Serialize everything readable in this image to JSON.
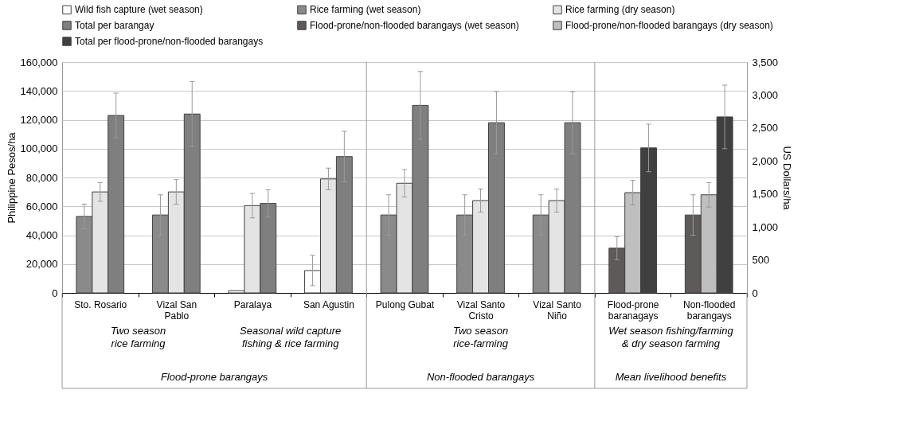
{
  "chart_data": {
    "type": "bar",
    "ylabel": "Philippine Pesos/ha",
    "y2label": "US Dollars/ha",
    "categories": [
      "Sto. Rosario",
      "Vizal San Pablo",
      "Paralaya",
      "San Agustin",
      "Pulong Gubat",
      "Vizal Santo Cristo",
      "Vizal Santo Niño",
      "Flood-prone baranagays",
      "Non-flooded barangays"
    ],
    "series": [
      {
        "name": "Wild fish capture (wet season)",
        "color": "#ffffff",
        "values": [
          null,
          null,
          1500,
          15500,
          null,
          null,
          null,
          null,
          null
        ],
        "errors": [
          null,
          null,
          null,
          10500,
          null,
          null,
          null,
          null,
          null
        ]
      },
      {
        "name": "Rice farming (wet season)",
        "color": "#8a8a8a",
        "values": [
          53000,
          54000,
          null,
          null,
          54000,
          54000,
          54000,
          null,
          null
        ],
        "errors": [
          8500,
          14000,
          null,
          null,
          14000,
          14000,
          14000,
          null,
          null
        ]
      },
      {
        "name": "Rice farming (dry season)",
        "color": "#e4e4e4",
        "values": [
          70000,
          70000,
          60500,
          79000,
          76000,
          64000,
          64000,
          null,
          null
        ],
        "errors": [
          6500,
          8500,
          8500,
          7500,
          9500,
          8000,
          8000,
          null,
          null
        ]
      },
      {
        "name": "Total per barangay",
        "color": "#7f7f7f",
        "values": [
          123000,
          124000,
          62000,
          94500,
          130000,
          118000,
          118000,
          null,
          null
        ],
        "errors": [
          15500,
          22500,
          9500,
          17500,
          23500,
          21500,
          21500,
          null,
          null
        ]
      },
      {
        "name": "Flood-prone/non-flooded barangays (wet season)",
        "color": "#5f5a5a",
        "values": [
          null,
          null,
          null,
          null,
          null,
          null,
          null,
          31000,
          54000
        ],
        "errors": [
          null,
          null,
          null,
          null,
          null,
          null,
          null,
          8000,
          14000
        ]
      },
      {
        "name": "Flood-prone/non-flooded barangays (dry season)",
        "color": "#bfbfbf",
        "values": [
          null,
          null,
          null,
          null,
          null,
          null,
          null,
          69500,
          68000
        ],
        "errors": [
          null,
          null,
          null,
          null,
          null,
          null,
          null,
          8500,
          8500
        ]
      },
      {
        "name": "Total per flood-prone/non-flooded barangays",
        "color": "#404040",
        "values": [
          null,
          null,
          null,
          null,
          null,
          null,
          null,
          100500,
          122000
        ],
        "errors": [
          null,
          null,
          null,
          null,
          null,
          null,
          null,
          16500,
          22000
        ]
      }
    ],
    "ylim": [
      0,
      160000
    ],
    "yticks": [
      0,
      {
        "value": 20000,
        "label": "20,000"
      },
      {
        "value": 40000,
        "label": "40,000"
      },
      {
        "value": 60000,
        "label": "60,000"
      },
      {
        "value": 80000,
        "label": "80,000"
      },
      {
        "value": 100000,
        "label": "100,000"
      },
      {
        "value": 120000,
        "label": "120,000"
      },
      {
        "value": 140000,
        "label": "140,000"
      },
      {
        "value": 160000,
        "label": "160,000"
      }
    ],
    "y2lim": [
      0,
      3500
    ],
    "y2ticks": [
      0,
      500,
      {
        "value": 1000,
        "label": "1,000"
      },
      {
        "value": 1500,
        "label": "1,500"
      },
      {
        "value": 2000,
        "label": "2,000"
      },
      {
        "value": 2500,
        "label": "2,500"
      },
      {
        "value": 3000,
        "label": "3,000"
      },
      {
        "value": 3500,
        "label": "3,500"
      }
    ],
    "grid": "y",
    "legend": "top",
    "annotations": [
      "Two season rice farming",
      "Seasonal wild capture fishing & rice farming",
      "Two season rice-farming",
      "Wet season fishing/farming & dry season farming",
      "Flood-prone barangays",
      "Non-flooded barangays",
      "Mean livelihood benefits"
    ]
  }
}
